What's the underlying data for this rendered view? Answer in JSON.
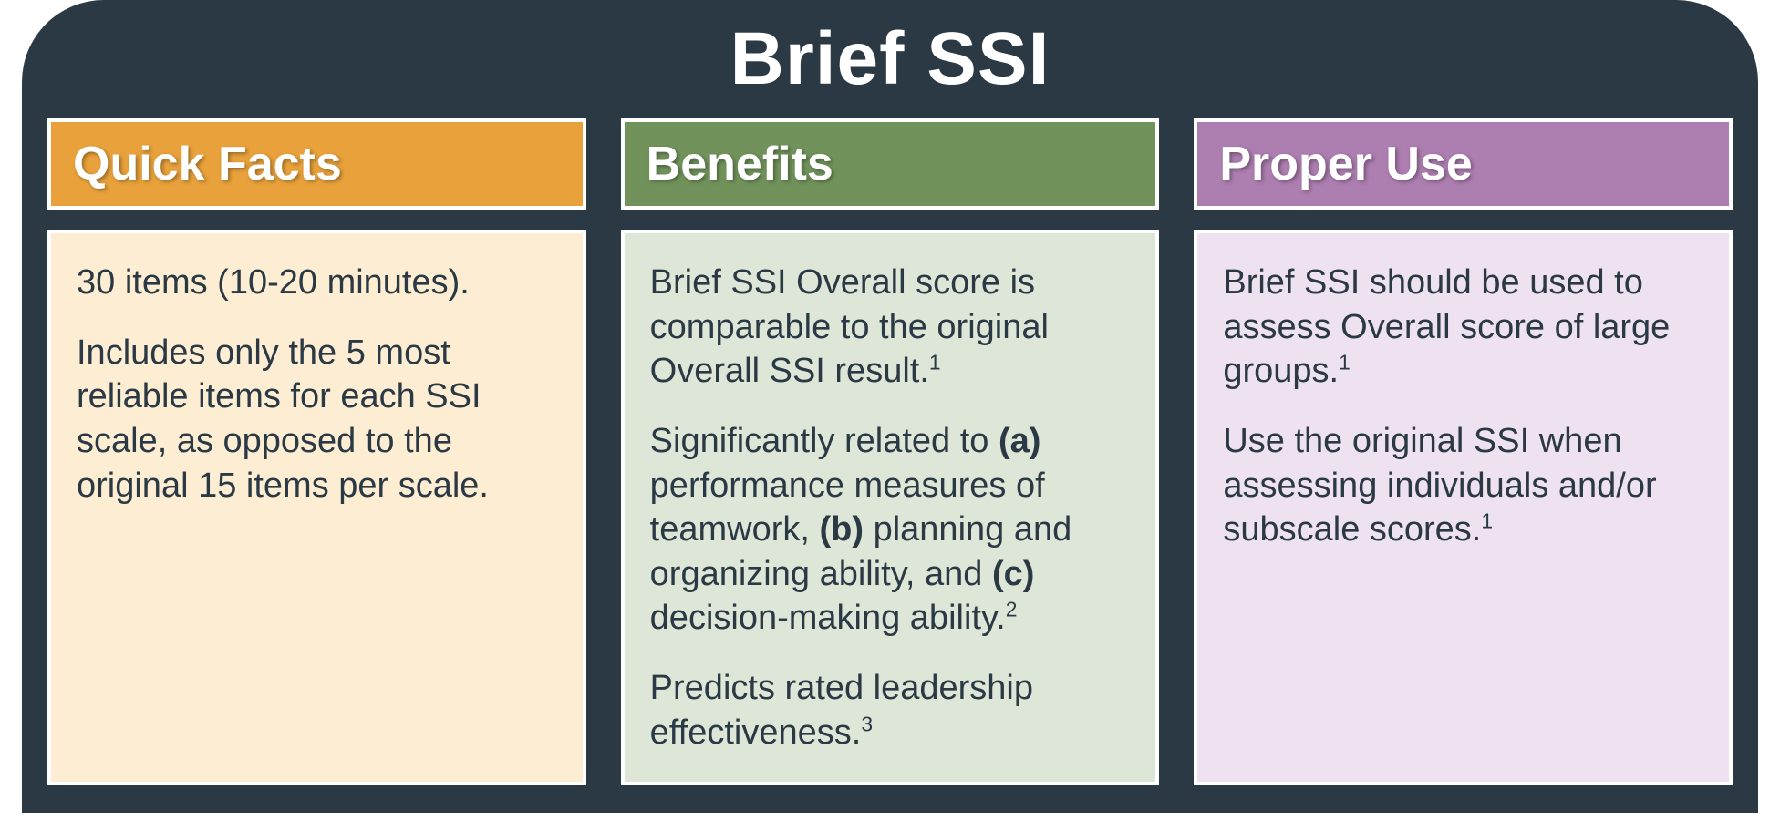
{
  "header": {
    "title": "Brief SSI",
    "bg_color": "#2b3945",
    "title_color": "#ffffff",
    "title_fontsize": 82,
    "radius": 90
  },
  "body_bg_color": "#2b3945",
  "border_color": "#ffffff",
  "text_color": "#2b3945",
  "body_fontsize": 38,
  "header_fontsize": 52,
  "columns": [
    {
      "id": "quick-facts",
      "title": "Quick Facts",
      "header_bg": "#e9a23b",
      "body_bg": "#fdeed3",
      "paragraphs": [
        "30 items (10-20 minutes).",
        "Includes only the 5 most reliable items for each SSI scale, as opposed to the original 15 items per scale."
      ]
    },
    {
      "id": "benefits",
      "title": "Benefits",
      "header_bg": "#71935b",
      "body_bg": "#dde6d7",
      "paragraphs": [
        "Brief SSI Overall score is comparable to the original Overall SSI result.<sup>1</sup>",
        "Significantly related to <b>(a)</b> performance measures of teamwork, <b>(b)</b> planning and organizing ability, and <b>(c)</b> decision-making ability.<sup>2</sup>",
        "Predicts rated leadership effectiveness.<sup>3</sup>"
      ]
    },
    {
      "id": "proper-use",
      "title": "Proper Use",
      "header_bg": "#ad7eb0",
      "body_bg": "#efe2f0",
      "paragraphs": [
        "Brief SSI should be used to assess Overall score of large groups.<sup>1</sup>",
        "Use the original SSI when assessing individuals and/or subscale scores.<sup>1</sup>"
      ]
    }
  ]
}
